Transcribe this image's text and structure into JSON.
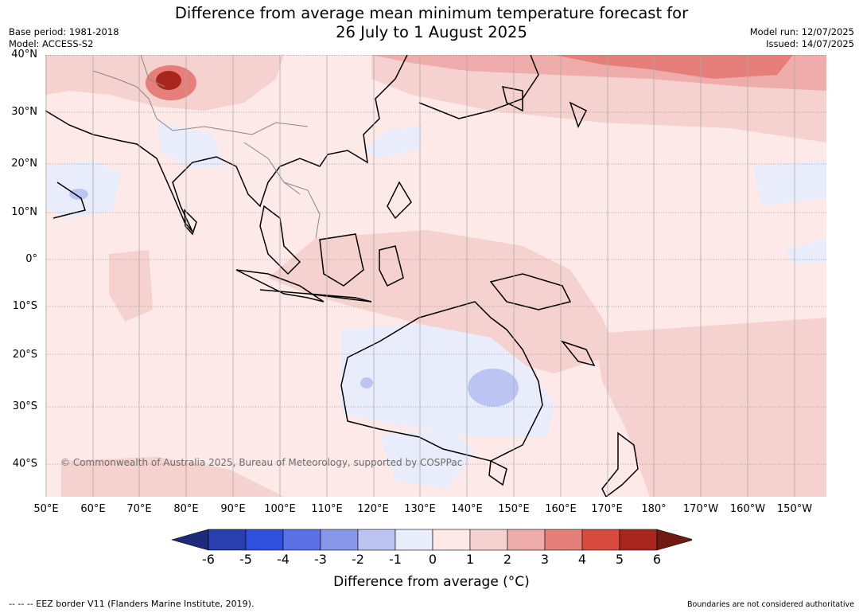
{
  "title": {
    "line1": "Difference from average mean minimum temperature forecast for",
    "line2": "26 July to 1 August 2025"
  },
  "meta_left": {
    "base_period": "Base period: 1981-2018",
    "model": "Model: ACCESS-S2"
  },
  "meta_right": {
    "model_run": "Model run: 12/07/2025",
    "issued": "Issued: 14/07/2025"
  },
  "map": {
    "lat_labels": [
      "40°N",
      "30°N",
      "20°N",
      "10°N",
      "0°",
      "10°S",
      "20°S",
      "30°S",
      "40°S"
    ],
    "lon_labels": [
      "50°E",
      "60°E",
      "70°E",
      "80°E",
      "90°E",
      "100°E",
      "110°E",
      "120°E",
      "130°E",
      "140°E",
      "150°E",
      "160°E",
      "170°E",
      "180°",
      "170°W",
      "160°W",
      "150°W"
    ],
    "copyright": "© Commonwealth of Australia 2025, Bureau of Meteorology, supported by COSPPac",
    "background_color": "#fde9e8"
  },
  "colorbar": {
    "title": "Difference from average (°C)",
    "ticks": [
      "-6",
      "-5",
      "-4",
      "-3",
      "-2",
      "-1",
      "0",
      "1",
      "2",
      "3",
      "4",
      "5",
      "6"
    ],
    "colors": [
      "#1d2b7a",
      "#2a3faf",
      "#2f50de",
      "#5a70e4",
      "#8897ea",
      "#bcc4f2",
      "#e9ecfb",
      "#fde9e8",
      "#f5d1cf",
      "#eeacaa",
      "#e67f79",
      "#d84a3e",
      "#a8261e",
      "#701b12"
    ]
  },
  "footer": {
    "eez": "-- -- -- EEZ border V11 (Flanders Marine Institute, 2019).",
    "boundaries": "Boundaries are not considered authoritative"
  }
}
